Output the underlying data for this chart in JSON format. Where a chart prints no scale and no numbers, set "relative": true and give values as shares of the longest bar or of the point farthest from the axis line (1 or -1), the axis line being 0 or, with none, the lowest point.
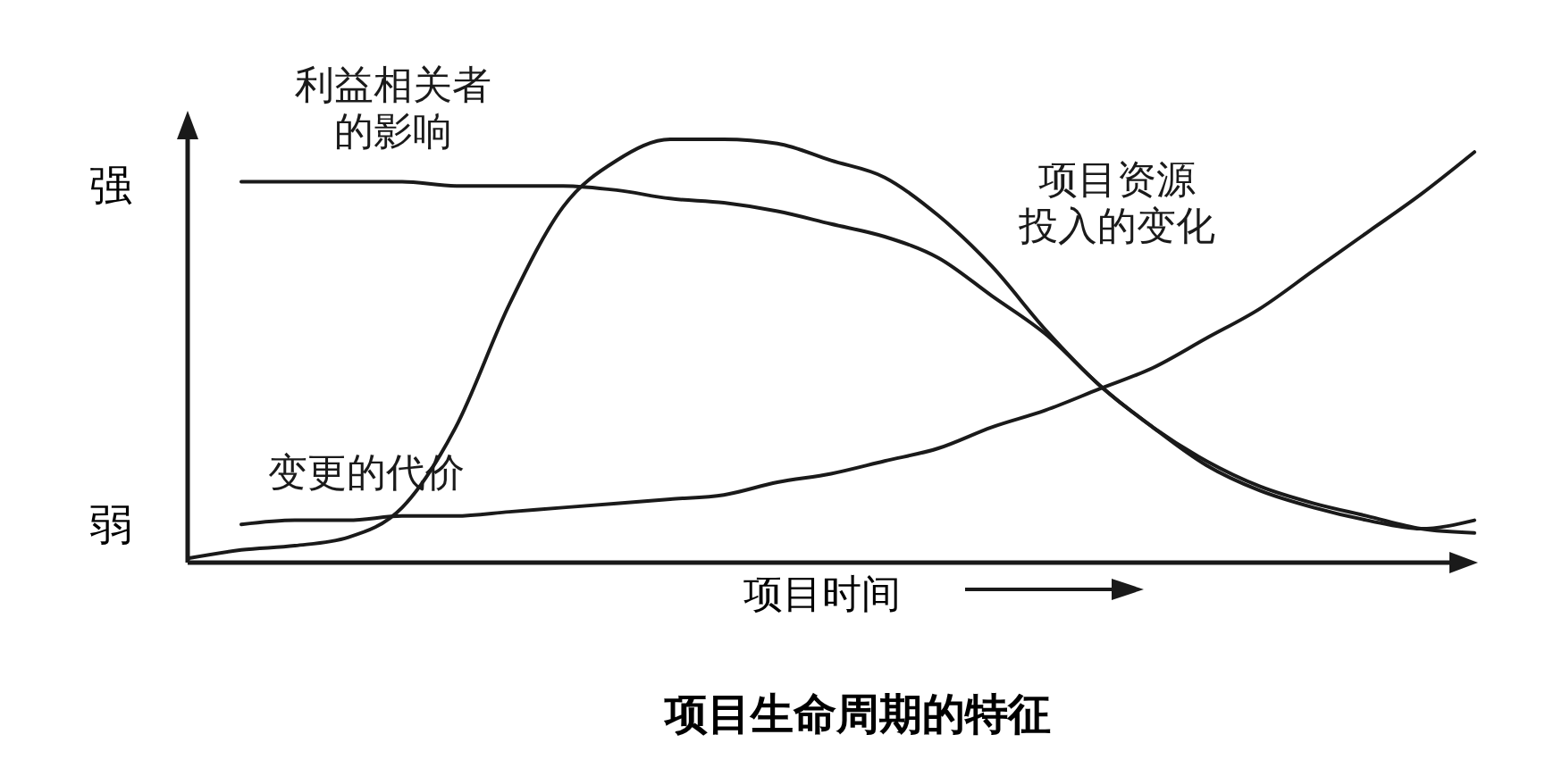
{
  "chart_data": {
    "type": "line",
    "title": "项目生命周期的特征",
    "xlabel": "项目时间",
    "relative": true,
    "legend": false,
    "grid": false,
    "marker": "none",
    "line_style": "solid",
    "categories": [
      null,
      null,
      null,
      null,
      null,
      null,
      null,
      null,
      null,
      null,
      null,
      null,
      null,
      null,
      null,
      null,
      null,
      null,
      null,
      null,
      null,
      null,
      null,
      null,
      null
    ],
    "annotations": [
      "强",
      "弱"
    ],
    "series": [
      {
        "name": "利益相关者的影响",
        "color": "#1a1a1a",
        "values": [
          null,
          0.9,
          0.9,
          0.9,
          0.9,
          0.89,
          0.89,
          0.89,
          0.88,
          0.86,
          0.85,
          0.83,
          0.8,
          0.77,
          0.72,
          0.63,
          0.54,
          0.42,
          0.32,
          0.24,
          0.18,
          0.14,
          0.11,
          0.08,
          0.07
        ]
      },
      {
        "name": "项目资源投入的变化",
        "color": "#1a1a1a",
        "values": [
          0.01,
          0.03,
          0.04,
          0.06,
          0.13,
          0.32,
          0.61,
          0.84,
          0.95,
          1,
          1,
          0.99,
          0.95,
          0.91,
          0.82,
          0.7,
          0.55,
          0.42,
          0.32,
          0.23,
          0.17,
          0.13,
          0.1,
          0.08,
          0.1
        ]
      },
      {
        "name": "变更的代价",
        "color": "#1a1a1a",
        "values": [
          null,
          0.09,
          0.1,
          0.1,
          0.11,
          0.11,
          0.12,
          0.13,
          0.14,
          0.15,
          0.16,
          0.19,
          0.21,
          0.24,
          0.27,
          0.32,
          0.36,
          0.41,
          0.46,
          0.53,
          0.6,
          0.69,
          0.78,
          0.87,
          0.97
        ]
      }
    ]
  }
}
